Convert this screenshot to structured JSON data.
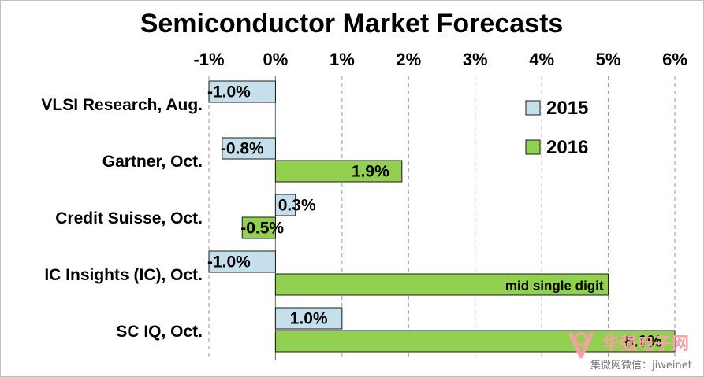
{
  "chart_data": {
    "type": "bar",
    "orientation": "horizontal",
    "title": "Semiconductor Market Forecasts",
    "xlabel": "",
    "ylabel": "",
    "xlim": [
      -1,
      6
    ],
    "x_ticks": [
      -1,
      0,
      1,
      2,
      3,
      4,
      5,
      6
    ],
    "x_tick_labels": [
      "-1%",
      "0%",
      "1%",
      "2%",
      "3%",
      "4%",
      "5%",
      "6%"
    ],
    "x_axis_position": "top",
    "grid": "vertical dashed",
    "categories": [
      "VLSI Research, Aug.",
      "Gartner, Oct.",
      "Credit Suisse, Oct.",
      "IC Insights (IC), Oct.",
      "SC IQ, Oct."
    ],
    "legend_position": "top-right",
    "series": [
      {
        "name": "2015",
        "color": "#c5e0ec",
        "values": [
          -1.0,
          -0.8,
          0.3,
          -1.0,
          1.0
        ],
        "labels": [
          "-1.0%",
          "-0.8%",
          "0.3%",
          "-1.0%",
          "1.0%"
        ]
      },
      {
        "name": "2016",
        "color": "#92d050",
        "values": [
          null,
          1.9,
          -0.5,
          5.0,
          6.0
        ],
        "labels": [
          "",
          "1.9%",
          "-0.5%",
          "mid single digit",
          "6.0%"
        ]
      }
    ]
  },
  "watermark": {
    "main": "华强电子网",
    "sub": "集微网微信：jiweinet"
  }
}
